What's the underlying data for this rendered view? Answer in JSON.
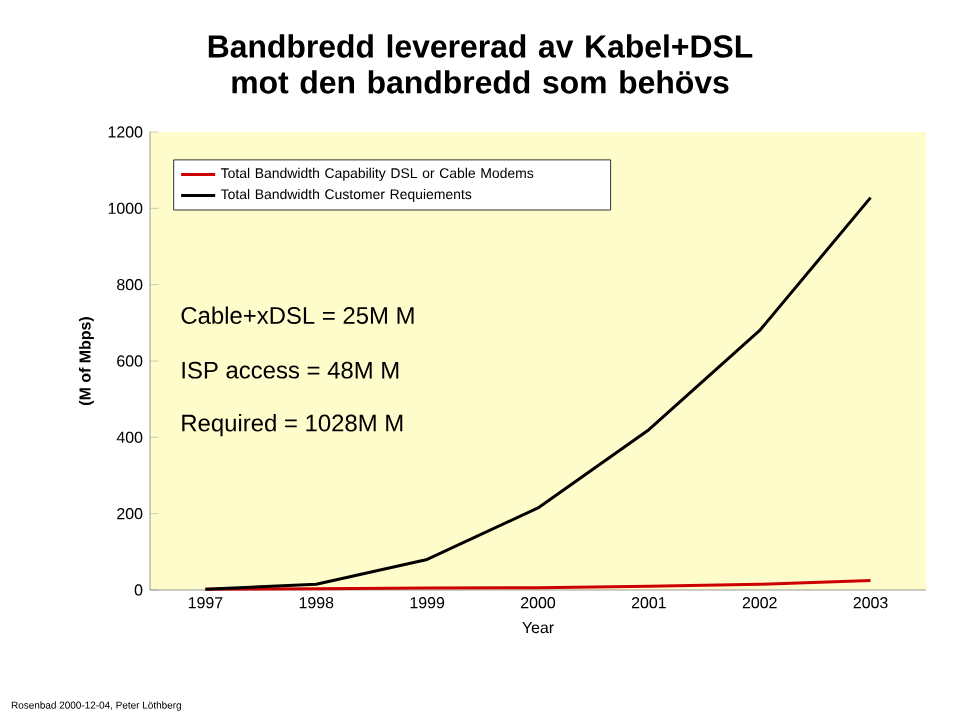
{
  "chart_data": {
    "type": "line",
    "title": "Bandbredd levererad av Kabel+DSL mot den bandbredd som behövs",
    "xlabel": "Year",
    "ylabel": "(M of Mbps)",
    "categories": [
      "1997",
      "1998",
      "1999",
      "2000",
      "2001",
      "2002",
      "2003"
    ],
    "series": [
      {
        "name": "Total Bandwidth Capability DSL or Cable Modems",
        "color": "#cc0000",
        "values": [
          2,
          3,
          5,
          6,
          10,
          15,
          25
        ]
      },
      {
        "name": "Total Bandwidth Customer Requiements",
        "color": "#000000",
        "values": [
          2,
          15,
          80,
          215,
          420,
          680,
          1028
        ]
      }
    ],
    "ylim": [
      0,
      1200
    ],
    "yticks": [
      0,
      200,
      400,
      600,
      800,
      1000,
      1200
    ],
    "grid": false,
    "legend": "top left",
    "marker": "none",
    "line_style": "solid",
    "annotations": [
      "Cable+xDSL =    25M M",
      "ISP access  =     48M M",
      "Required     = 1028M M",
      "Rosenbad 2000-12-04, Peter Löthberg"
    ]
  }
}
